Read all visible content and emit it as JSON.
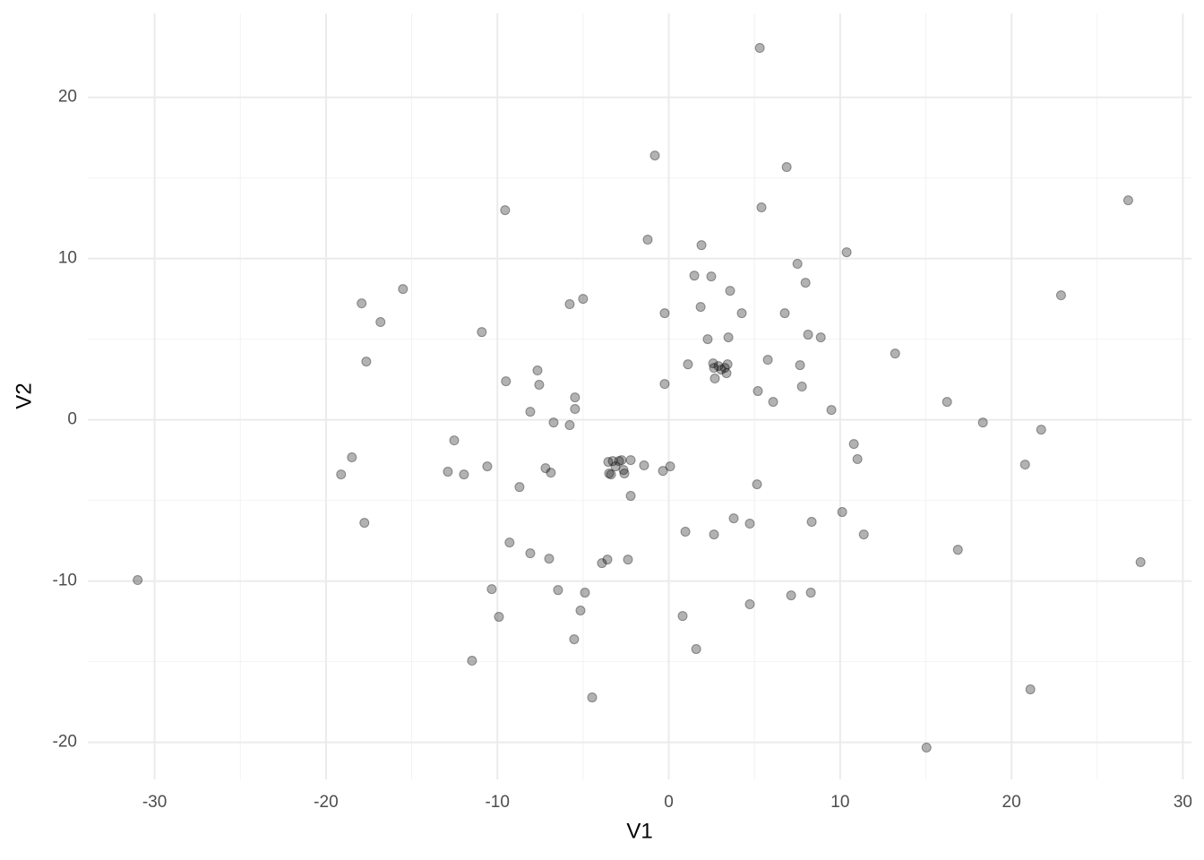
{
  "chart_data": {
    "type": "scatter",
    "x_label": "V1",
    "y_label": "V2",
    "xlim": [
      -33.9,
      30.5
    ],
    "ylim": [
      -22.3,
      25.2
    ],
    "xticks": [
      -30,
      -20,
      -10,
      0,
      10,
      20,
      30
    ],
    "yticks": [
      -20,
      -10,
      0,
      10,
      20
    ],
    "xminorticks": [
      -25,
      -15,
      -5,
      5,
      15,
      25
    ],
    "yminorticks": [
      -15,
      -5,
      5,
      15
    ],
    "grid": true,
    "color": "#000000",
    "opacity": 0.3,
    "x": [
      5.31,
      -0.81,
      6.88,
      26.81,
      -9.55,
      5.41,
      -1.23,
      1.91,
      10.38,
      7.51,
      1.49,
      2.48,
      -15.51,
      3.58,
      7.98,
      22.89,
      -17.92,
      -5.0,
      -5.78,
      1.86,
      -0.24,
      4.26,
      6.77,
      -16.82,
      -10.91,
      2.27,
      3.48,
      8.13,
      8.87,
      13.21,
      -17.65,
      1.12,
      5.78,
      -7.66,
      2.59,
      2.64,
      2.9,
      3.06,
      3.27,
      3.43,
      3.37,
      7.66,
      2.69,
      -9.5,
      -7.56,
      -0.24,
      7.77,
      5.2,
      -5.47,
      6.09,
      16.24,
      -5.47,
      9.49,
      -8.08,
      -6.72,
      -5.78,
      18.33,
      21.73,
      -12.52,
      10.8,
      -18.49,
      11.01,
      20.79,
      -10.59,
      -1.44,
      0.08,
      -7.19,
      -6.88,
      -3.53,
      -3.27,
      -2.9,
      -2.75,
      -2.22,
      -3.11,
      -2.64,
      -3.48,
      -3.37,
      -2.59,
      -0.34,
      -12.89,
      -11.95,
      -19.12,
      -8.71,
      5.15,
      -2.22,
      10.12,
      3.79,
      -17.76,
      4.73,
      8.34,
      0.97,
      2.64,
      11.38,
      -9.29,
      16.87,
      -8.08,
      -6.98,
      -3.9,
      -3.58,
      -2.38,
      27.53,
      -30.99,
      -10.33,
      -6.46,
      -4.89,
      8.29,
      7.14,
      4.73,
      -5.15,
      -9.91,
      0.81,
      -5.52,
      1.6,
      -11.48,
      -4.47,
      21.1,
      15.04
    ],
    "values": [
      23.06,
      16.39,
      15.67,
      13.61,
      13.0,
      13.17,
      11.17,
      10.83,
      10.39,
      9.67,
      8.94,
      8.89,
      8.11,
      8.0,
      8.5,
      7.72,
      7.22,
      7.5,
      7.17,
      7.0,
      6.61,
      6.61,
      6.61,
      6.06,
      5.44,
      5.0,
      5.11,
      5.28,
      5.11,
      4.11,
      3.61,
      3.44,
      3.72,
      3.06,
      3.5,
      3.22,
      3.33,
      3.11,
      3.22,
      3.44,
      2.89,
      3.39,
      2.56,
      2.39,
      2.17,
      2.22,
      2.06,
      1.78,
      1.39,
      1.11,
      1.11,
      0.67,
      0.61,
      0.5,
      -0.17,
      -0.33,
      -0.17,
      -0.61,
      -1.28,
      -1.5,
      -2.33,
      -2.44,
      -2.78,
      -2.89,
      -2.83,
      -2.89,
      -3.0,
      -3.28,
      -2.61,
      -2.56,
      -2.56,
      -2.5,
      -2.5,
      -2.89,
      -3.11,
      -3.33,
      -3.39,
      -3.33,
      -3.17,
      -3.22,
      -3.39,
      -3.39,
      -4.17,
      -4.0,
      -4.72,
      -5.72,
      -6.11,
      -6.39,
      -6.44,
      -6.33,
      -6.94,
      -7.11,
      -7.11,
      -7.61,
      -8.06,
      -8.28,
      -8.61,
      -8.89,
      -8.67,
      -8.67,
      -8.83,
      -9.94,
      -10.5,
      -10.56,
      -10.72,
      -10.72,
      -10.89,
      -11.44,
      -11.83,
      -12.22,
      -12.17,
      -13.61,
      -14.22,
      -14.94,
      -17.22,
      -16.72,
      -20.33
    ]
  }
}
